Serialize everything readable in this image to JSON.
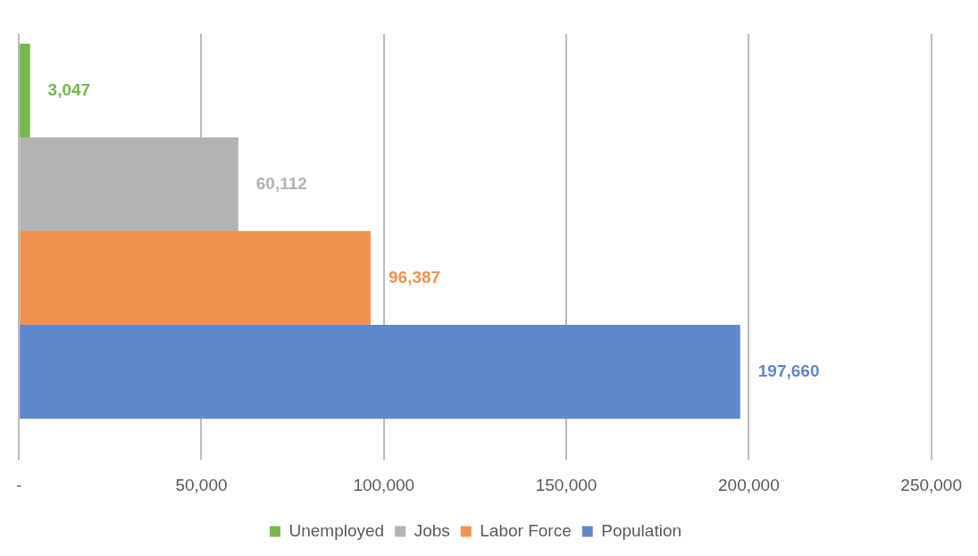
{
  "chart_data": {
    "type": "bar",
    "orientation": "horizontal",
    "categories": [
      null
    ],
    "series": [
      {
        "name": "Unemployed",
        "color": "#75b84f",
        "values": [
          3047
        ],
        "value_labels": [
          "3,047"
        ]
      },
      {
        "name": "Jobs",
        "color": "#b3b3b3",
        "values": [
          60112
        ],
        "value_labels": [
          "60,112"
        ]
      },
      {
        "name": "Labor Force",
        "color": "#ef9350",
        "values": [
          96387
        ],
        "value_labels": [
          "96,387"
        ]
      },
      {
        "name": "Population",
        "color": "#5f88cc",
        "values": [
          197660
        ],
        "value_labels": [
          "197,660"
        ]
      }
    ],
    "xlim": [
      0,
      250000
    ],
    "xticks": [
      {
        "value": 0,
        "label": "-"
      },
      {
        "value": 50000,
        "label": "50,000"
      },
      {
        "value": 100000,
        "label": "100,000"
      },
      {
        "value": 150000,
        "label": "150,000"
      },
      {
        "value": 200000,
        "label": "200,000"
      },
      {
        "value": 250000,
        "label": "250,000"
      }
    ],
    "grid": "x",
    "legend": "bottom"
  }
}
